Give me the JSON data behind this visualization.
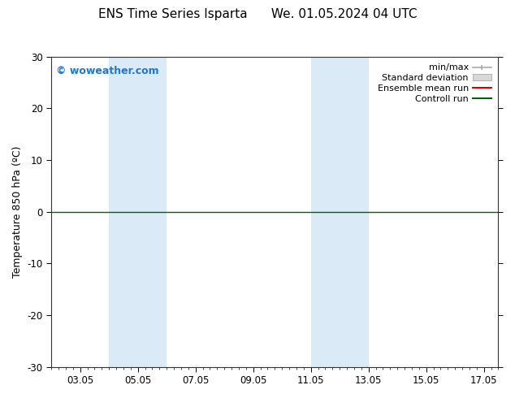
{
  "title": "ENS Time Series Isparta      We. 01.05.2024 04 UTC",
  "ylabel": "Temperature 850 hPa (ºC)",
  "ylim": [
    -30,
    30
  ],
  "yticks": [
    -30,
    -20,
    -10,
    0,
    10,
    20,
    30
  ],
  "xlim": [
    0,
    15.5
  ],
  "xtick_positions": [
    1,
    3,
    5,
    7,
    9,
    11,
    13,
    15
  ],
  "xtick_labels": [
    "03.05",
    "05.05",
    "07.05",
    "09.05",
    "11.05",
    "13.05",
    "15.05",
    "17.05"
  ],
  "shade_bands": [
    {
      "start": 2.0,
      "end": 4.0
    },
    {
      "start": 9.0,
      "end": 11.0
    }
  ],
  "shade_color": "#daeaf7",
  "zero_line_color": "#006600",
  "watermark": "© woweather.com",
  "watermark_color": "#2277cc",
  "background_color": "#ffffff",
  "title_fontsize": 11,
  "axis_label_fontsize": 9,
  "tick_fontsize": 8.5,
  "legend_fontsize": 8
}
